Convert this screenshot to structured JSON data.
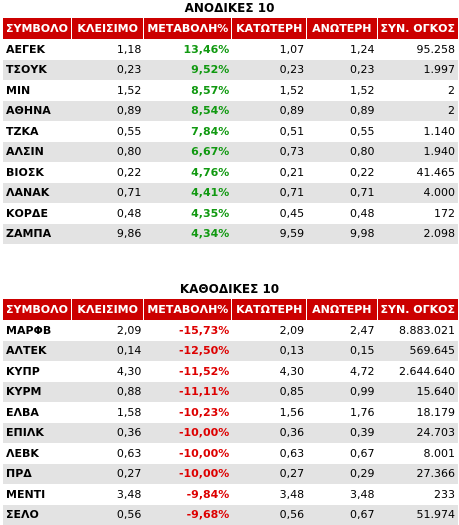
{
  "gainers": {
    "title": "ΑΝΟΔΙΚΕΣ 10",
    "headers": [
      "ΣΥΜΒΟΛΟ",
      "ΚΛΕΙΣΙΜΟ",
      "ΜΕΤΑΒΟΛΗ%",
      "ΚΑΤΩΤΕΡΗ",
      "ΑΝΩΤΕΡΗ",
      "ΣΥΝ. ΟΓΚΟΣ"
    ],
    "change_color": "#119911",
    "rows": [
      [
        "ΑΕΓΕΚ",
        "1,18",
        "13,46%",
        "1,07",
        "1,24",
        "95.258"
      ],
      [
        "ΤΣΟΥΚ",
        "0,23",
        "9,52%",
        "0,23",
        "0,23",
        "1.997"
      ],
      [
        "ΜΙΝ",
        "1,52",
        "8,57%",
        "1,52",
        "1,52",
        "2"
      ],
      [
        "ΑΘΗΝΑ",
        "0,89",
        "8,54%",
        "0,89",
        "0,89",
        "2"
      ],
      [
        "ΤΖΚΑ",
        "0,55",
        "7,84%",
        "0,51",
        "0,55",
        "1.140"
      ],
      [
        "ΑΛΣΙΝ",
        "0,80",
        "6,67%",
        "0,73",
        "0,80",
        "1.940"
      ],
      [
        "ΒΙΟΣΚ",
        "0,22",
        "4,76%",
        "0,21",
        "0,22",
        "41.465"
      ],
      [
        "ΛΑΝΑΚ",
        "0,71",
        "4,41%",
        "0,71",
        "0,71",
        "4.000"
      ],
      [
        "ΚΟΡΔΕ",
        "0,48",
        "4,35%",
        "0,45",
        "0,48",
        "172"
      ],
      [
        "ΖΑΜΠΑ",
        "9,86",
        "4,34%",
        "9,59",
        "9,98",
        "2.098"
      ]
    ]
  },
  "losers": {
    "title": "ΚΑΘΟΔΙΚΕΣ 10",
    "headers": [
      "ΣΥΜΒΟΛΟ",
      "ΚΛΕΙΣΙΜΟ",
      "ΜΕΤΑΒΟΛΗ%",
      "ΚΑΤΩΤΕΡΗ",
      "ΑΝΩΤΕΡΗ",
      "ΣΥΝ. ΟΓΚΟΣ"
    ],
    "change_color": "#dd0000",
    "rows": [
      [
        "ΜΑΡΦΒ",
        "2,09",
        "-15,73%",
        "2,09",
        "2,47",
        "8.883.021"
      ],
      [
        "ΑΛΤΕΚ",
        "0,14",
        "-12,50%",
        "0,13",
        "0,15",
        "569.645"
      ],
      [
        "ΚΥΠΡ",
        "4,30",
        "-11,52%",
        "4,30",
        "4,72",
        "2.644.640"
      ],
      [
        "ΚΥΡΜ",
        "0,88",
        "-11,11%",
        "0,85",
        "0,99",
        "15.640"
      ],
      [
        "ΕΛΒΑ",
        "1,58",
        "-10,23%",
        "1,56",
        "1,76",
        "18.179"
      ],
      [
        "ΕΠΙΛΚ",
        "0,36",
        "-10,00%",
        "0,36",
        "0,39",
        "24.703"
      ],
      [
        "ΛΕΒΚ",
        "0,63",
        "-10,00%",
        "0,63",
        "0,67",
        "8.001"
      ],
      [
        "ΠΡΔ",
        "0,27",
        "-10,00%",
        "0,27",
        "0,29",
        "27.366"
      ],
      [
        "ΜΕΝΤΙ",
        "3,48",
        "-9,84%",
        "3,48",
        "3,48",
        "233"
      ],
      [
        "ΣΕΛΟ",
        "0,56",
        "-9,68%",
        "0,56",
        "0,67",
        "51.974"
      ]
    ]
  }
}
